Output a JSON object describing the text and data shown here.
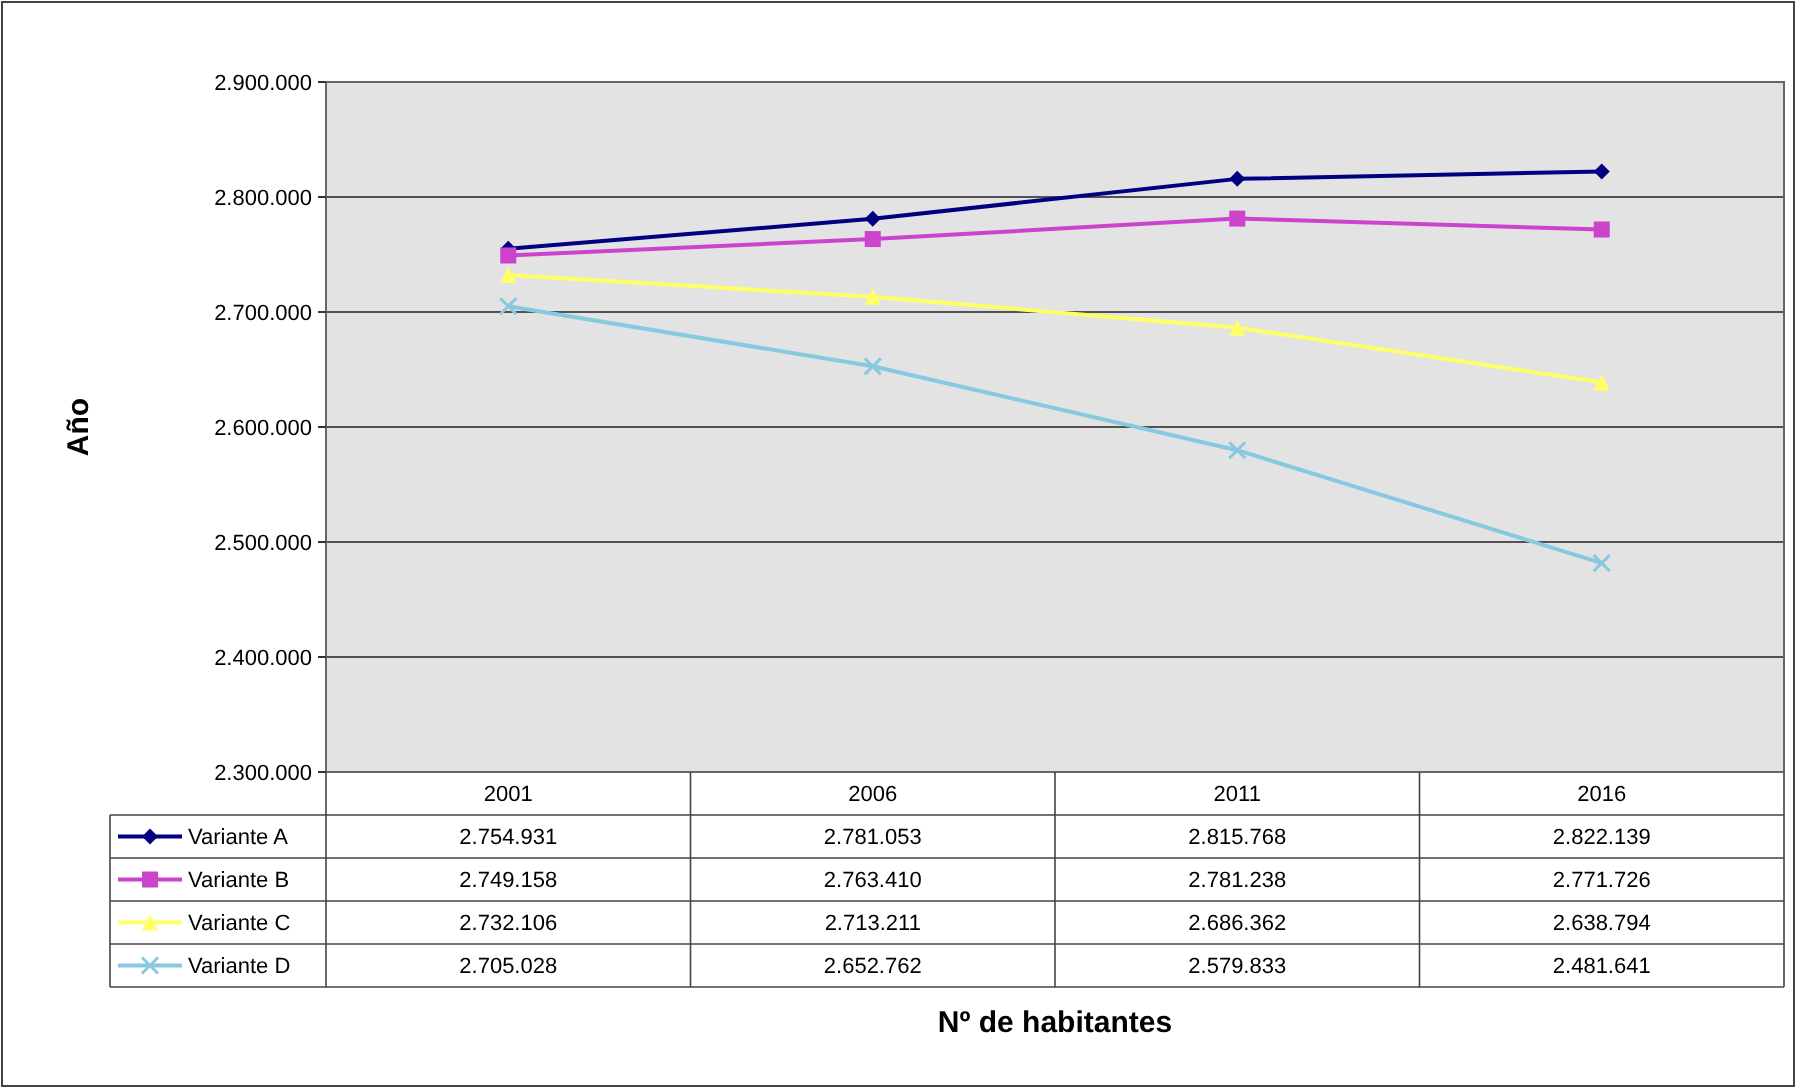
{
  "chart_data": {
    "type": "line",
    "annotations": [
      "Nº de habitantes"
    ],
    "ylabel": "Año",
    "categories": [
      "2001",
      "2006",
      "2011",
      "2016"
    ],
    "series": [
      {
        "name": "Variante A",
        "color": "#000080",
        "marker": "diamond",
        "values": [
          2754931,
          2781053,
          2815768,
          2822139
        ],
        "value_labels": [
          "2.754.931",
          "2.781.053",
          "2.815.768",
          "2.822.139"
        ]
      },
      {
        "name": "Variante B",
        "color": "#cc44cc",
        "marker": "square",
        "values": [
          2749158,
          2763410,
          2781238,
          2771726
        ],
        "value_labels": [
          "2.749.158",
          "2.763.410",
          "2.781.238",
          "2.771.726"
        ]
      },
      {
        "name": "Variante C",
        "color": "#ffff66",
        "marker": "triangle",
        "values": [
          2732106,
          2713211,
          2686362,
          2638794
        ],
        "value_labels": [
          "2.732.106",
          "2.713.211",
          "2.686.362",
          "2.638.794"
        ]
      },
      {
        "name": "Variante D",
        "color": "#88c8e0",
        "marker": "cross",
        "values": [
          2705028,
          2652762,
          2579833,
          2481641
        ],
        "value_labels": [
          "2.705.028",
          "2.652.762",
          "2.579.833",
          "2.481.641"
        ]
      }
    ],
    "ylim": [
      2300000,
      2900000
    ],
    "yticks": [
      {
        "value": 2300000,
        "label": "2.300.000"
      },
      {
        "value": 2400000,
        "label": "2.400.000"
      },
      {
        "value": 2500000,
        "label": "2.500.000"
      },
      {
        "value": 2600000,
        "label": "2.600.000"
      },
      {
        "value": 2700000,
        "label": "2.700.000"
      },
      {
        "value": 2800000,
        "label": "2.800.000"
      },
      {
        "value": 2900000,
        "label": "2.900.000"
      }
    ],
    "grid": "y",
    "legend": "bottom",
    "line_style": "solid"
  }
}
